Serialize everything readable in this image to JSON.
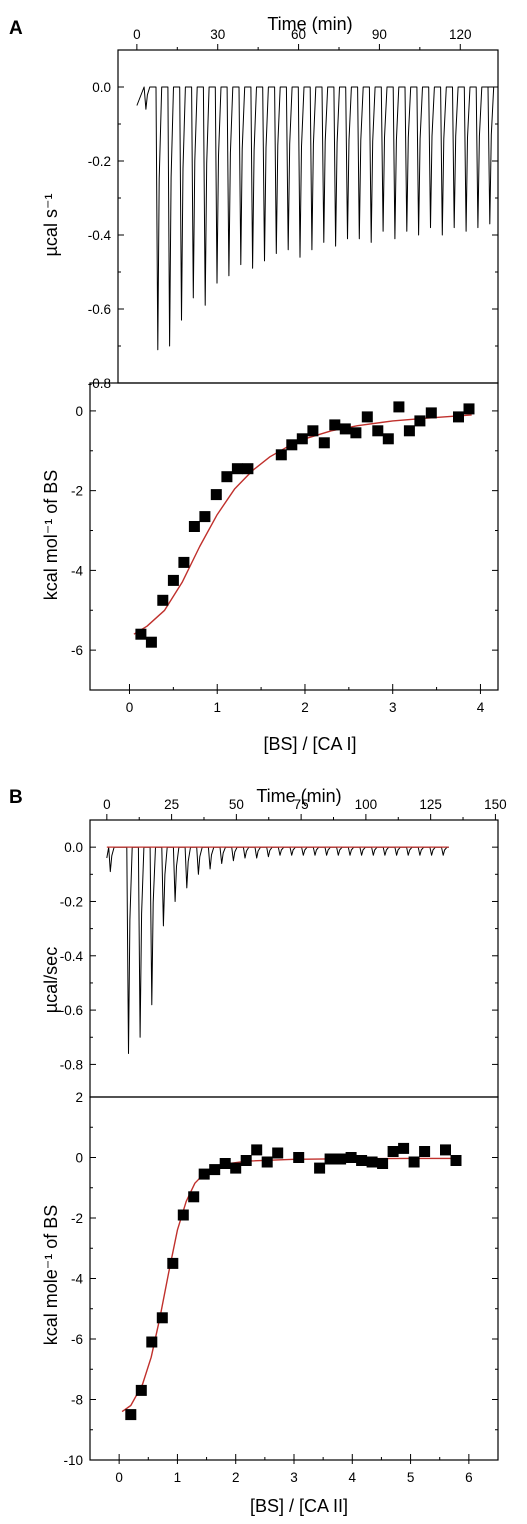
{
  "colors": {
    "axis": "#000000",
    "trace": "#000000",
    "fit": "#c0302c",
    "marker": "#000000"
  },
  "panels": {
    "A": {
      "letter": "A",
      "top_xlabel": "Time (min)",
      "raw_ylabel": "µcal s⁻¹",
      "int_ylabel": "kcal mol⁻¹ of BS",
      "bottom_xlabel": "[BS] / [CA I]"
    },
    "B": {
      "letter": "B",
      "top_xlabel": "Time (min)",
      "raw_ylabel": "µcal/sec",
      "int_ylabel": "kcal mole⁻¹ of BS",
      "bottom_xlabel": "[BS] / [CA II]"
    }
  },
  "chart_data": [
    {
      "panel": "A",
      "subplot": "raw heat",
      "type": "line",
      "xlabel": "Time (min)",
      "ylabel": "µcal s⁻¹",
      "xlim": [
        -7,
        134
      ],
      "ylim": [
        -0.8,
        0.1
      ],
      "xticks": [
        0,
        30,
        60,
        90,
        120
      ],
      "yticks": [
        0.0,
        -0.2,
        -0.4,
        -0.6,
        -0.8
      ],
      "baseline_start": -0.05,
      "baseline_start_time": 0,
      "baseline": 0.0,
      "injection_times": [
        3,
        7.4,
        11.8,
        16.2,
        20.6,
        25,
        29.4,
        33.8,
        38.2,
        42.6,
        47,
        51.4,
        55.8,
        60.2,
        64.6,
        69,
        73.4,
        77.8,
        82.2,
        86.6,
        91,
        95.4,
        99.8,
        104.2,
        108.6,
        113,
        117.4,
        121.8,
        126.2,
        130.6
      ],
      "peak_values": [
        -0.06,
        -0.71,
        -0.7,
        -0.63,
        -0.57,
        -0.59,
        -0.53,
        -0.51,
        -0.48,
        -0.49,
        -0.47,
        -0.45,
        -0.44,
        -0.46,
        -0.44,
        -0.42,
        -0.43,
        -0.41,
        -0.41,
        -0.42,
        -0.39,
        -0.41,
        -0.39,
        -0.4,
        -0.38,
        -0.4,
        -0.38,
        -0.39,
        -0.38,
        -0.37
      ],
      "end_time": 129
    },
    {
      "panel": "A",
      "subplot": "integrated heat",
      "type": "scatter",
      "xlabel": "[BS] / [CA I]",
      "ylabel": "kcal mol⁻¹ of BS",
      "xlim": [
        -0.45,
        4.2
      ],
      "ylim": [
        -7,
        0.7
      ],
      "xticks": [
        0,
        1,
        2,
        3,
        4
      ],
      "yticks": [
        0,
        -2,
        -4,
        -6
      ],
      "x": [
        0.13,
        0.25,
        0.38,
        0.5,
        0.62,
        0.74,
        0.86,
        0.99,
        1.11,
        1.23,
        1.35,
        1.73,
        1.85,
        1.97,
        2.09,
        2.22,
        2.34,
        2.46,
        2.58,
        2.71,
        2.83,
        2.95,
        3.07,
        3.19,
        3.31,
        3.44,
        3.75,
        3.87
      ],
      "y": [
        -5.6,
        -5.8,
        -4.75,
        -4.25,
        -3.8,
        -2.9,
        -2.65,
        -2.1,
        -1.65,
        -1.45,
        -1.45,
        -1.1,
        -0.85,
        -0.7,
        -0.5,
        -0.8,
        -0.35,
        -0.45,
        -0.55,
        -0.15,
        -0.5,
        -0.7,
        0.1,
        -0.5,
        -0.25,
        -0.05,
        -0.15,
        0.05
      ],
      "fit": {
        "label": "",
        "x": [
          0.05,
          0.2,
          0.4,
          0.6,
          0.8,
          1.0,
          1.2,
          1.4,
          1.6,
          1.8,
          2.0,
          2.3,
          2.6,
          3.0,
          3.4,
          3.9
        ],
        "y": [
          -5.6,
          -5.4,
          -5.0,
          -4.3,
          -3.4,
          -2.6,
          -1.95,
          -1.5,
          -1.15,
          -0.9,
          -0.7,
          -0.5,
          -0.37,
          -0.25,
          -0.18,
          -0.1
        ]
      }
    },
    {
      "panel": "B",
      "subplot": "raw heat",
      "type": "line",
      "xlabel": "Time (min)",
      "ylabel": "µcal/sec",
      "xlim": [
        -6.5,
        151
      ],
      "ylim": [
        -0.92,
        0.1
      ],
      "xticks": [
        0,
        25,
        50,
        75,
        100,
        125,
        150
      ],
      "yticks": [
        0.0,
        -0.2,
        -0.4,
        -0.6,
        -0.8
      ],
      "baseline_start": -0.04,
      "baseline_start_time": 0,
      "baseline": 0.0,
      "injection_times": [
        1,
        8,
        12.5,
        17,
        21.5,
        26,
        30.5,
        35,
        39.5,
        44,
        48.5,
        53,
        57.5,
        62,
        66.5,
        71,
        75.5,
        80,
        84.5,
        89,
        93.5,
        98,
        102.5,
        107,
        111.5,
        116,
        120.5,
        125,
        129.5
      ],
      "peak_values": [
        -0.09,
        -0.76,
        -0.7,
        -0.58,
        -0.29,
        -0.2,
        -0.15,
        -0.1,
        -0.08,
        -0.06,
        -0.05,
        -0.04,
        -0.04,
        -0.035,
        -0.03,
        -0.03,
        -0.03,
        -0.03,
        -0.03,
        -0.03,
        -0.03,
        -0.03,
        -0.03,
        -0.03,
        -0.03,
        -0.03,
        -0.03,
        -0.03,
        -0.03
      ],
      "end_time": 132,
      "fit_baseline": 0.0
    },
    {
      "panel": "B",
      "subplot": "integrated heat",
      "type": "scatter",
      "xlabel": "[BS] / [CA II]",
      "ylabel": "kcal mole⁻¹ of BS",
      "xlim": [
        -0.5,
        6.5
      ],
      "ylim": [
        -10,
        2
      ],
      "xticks": [
        0,
        1,
        2,
        3,
        4,
        5,
        6
      ],
      "yticks": [
        2,
        0,
        -2,
        -4,
        -6,
        -8,
        -10
      ],
      "x": [
        0.2,
        0.38,
        0.56,
        0.74,
        0.92,
        1.1,
        1.28,
        1.46,
        1.64,
        1.82,
        2.0,
        2.18,
        2.36,
        2.54,
        2.72,
        3.08,
        3.44,
        3.62,
        3.8,
        3.98,
        4.16,
        4.34,
        4.52,
        4.7,
        4.88,
        5.06,
        5.24,
        5.6,
        5.78
      ],
      "y": [
        -8.5,
        -7.7,
        -6.1,
        -5.3,
        -3.5,
        -1.9,
        -1.3,
        -0.55,
        -0.4,
        -0.2,
        -0.35,
        -0.1,
        0.25,
        -0.15,
        0.15,
        0.0,
        -0.35,
        -0.05,
        -0.05,
        0.0,
        -0.1,
        -0.15,
        -0.2,
        0.2,
        0.3,
        -0.15,
        0.2,
        0.25,
        -0.1
      ],
      "fit": {
        "label": "",
        "x": [
          0.05,
          0.2,
          0.4,
          0.55,
          0.7,
          0.85,
          1.0,
          1.15,
          1.3,
          1.5,
          1.8,
          2.2,
          3.0,
          4.0,
          5.0,
          5.8
        ],
        "y": [
          -8.4,
          -8.2,
          -7.5,
          -6.6,
          -5.3,
          -3.8,
          -2.4,
          -1.45,
          -0.85,
          -0.45,
          -0.22,
          -0.12,
          -0.06,
          -0.04,
          -0.03,
          -0.03
        ]
      }
    }
  ]
}
